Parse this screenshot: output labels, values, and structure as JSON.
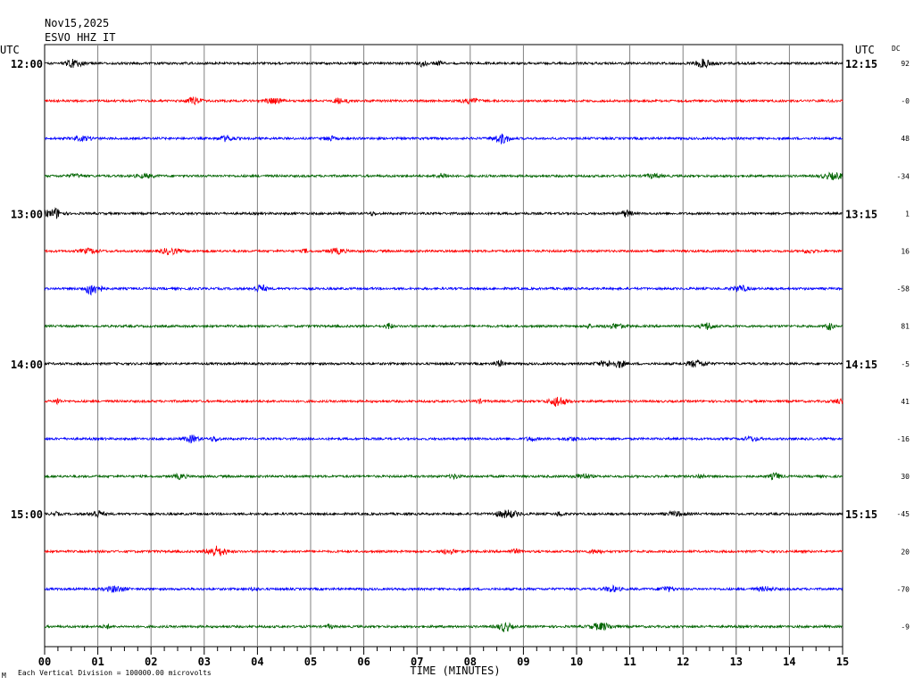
{
  "chart_data": {
    "type": "line",
    "date": "Nov15,2025",
    "station": "ESVO HHZ IT",
    "left_tz": "UTC",
    "right_tz": "UTC",
    "dc_label": "DC",
    "xlabel": "TIME (MINUTES)",
    "x_ticks": [
      "00",
      "01",
      "02",
      "03",
      "04",
      "05",
      "06",
      "07",
      "08",
      "09",
      "10",
      "11",
      "12",
      "13",
      "14",
      "15"
    ],
    "x_range": [
      0,
      15
    ],
    "left_times": [
      "12:00",
      "13:00",
      "14:00",
      "15:00"
    ],
    "right_times": [
      "12:15",
      "13:15",
      "14:15",
      "15:15"
    ],
    "trace_colors": [
      "#000000",
      "#ff0000",
      "#0000ff",
      "#006400"
    ],
    "dc_values": [
      "92",
      "-0",
      "48",
      "-34",
      "1",
      "16",
      "-58",
      "81",
      "-5",
      "41",
      "-16",
      "30",
      "-45",
      "20",
      "-70",
      "-9"
    ],
    "footnote_mark": "M",
    "footnote": "Each Vertical Division = 100000.00 microvolts",
    "grid": true
  }
}
